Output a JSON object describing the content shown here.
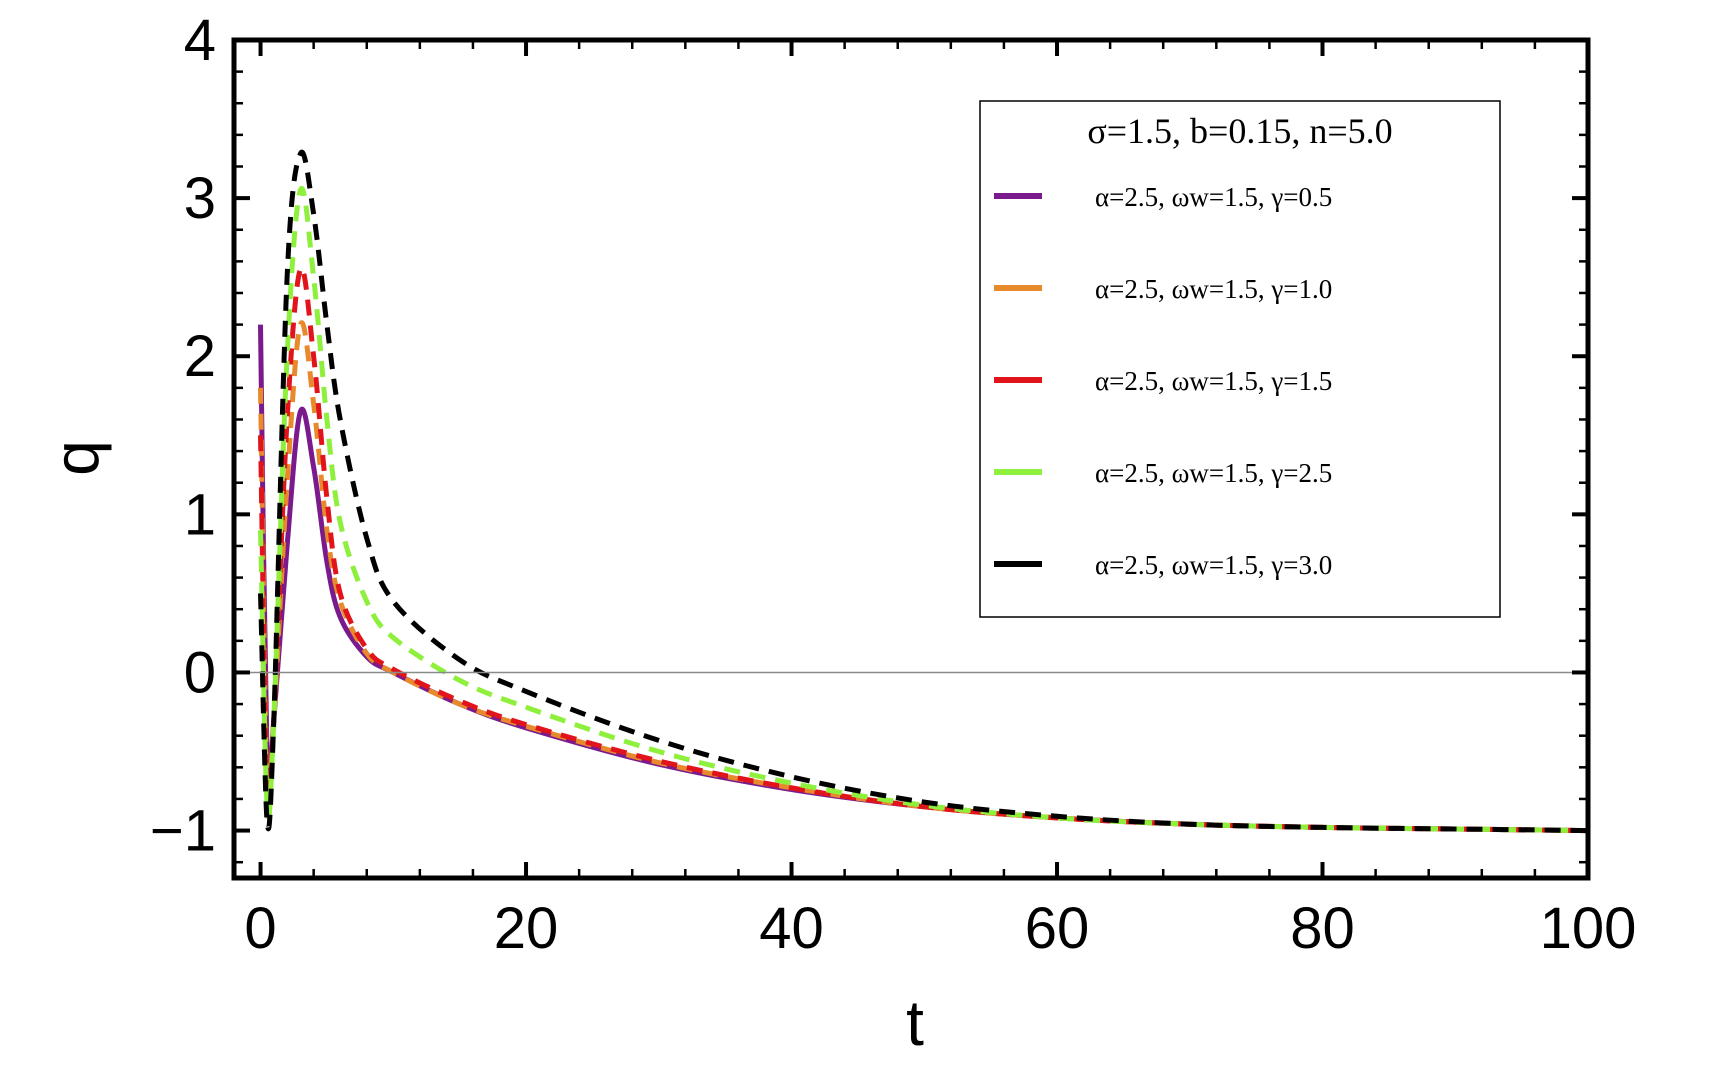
{
  "chart_data": {
    "type": "line",
    "xlabel": "t",
    "ylabel": "q",
    "xlim": [
      -2,
      100
    ],
    "ylim": [
      -1.3,
      4
    ],
    "xticks": [
      0,
      20,
      40,
      60,
      80,
      100
    ],
    "yticks": [
      -1,
      0,
      1,
      2,
      3,
      4
    ],
    "ytick_labels": [
      "−1",
      "0",
      "1",
      "2",
      "3",
      "4"
    ],
    "legend_title": "σ=1.5, b=0.15, n=5.0",
    "legend_position": "top-right",
    "grid": false,
    "reference_line_y": 0,
    "series": [
      {
        "name": "α=2.5, ωw=1.5, γ=0.5",
        "color": "#7a1a8c",
        "dash": "solid",
        "x": [
          0,
          0.5,
          1,
          2,
          3,
          4,
          5,
          6,
          8,
          10,
          15,
          20,
          30,
          40,
          50,
          60,
          70,
          80,
          90,
          100
        ],
        "y": [
          2.2,
          -0.6,
          -0.3,
          0.8,
          1.65,
          1.3,
          0.7,
          0.35,
          0.1,
          0.0,
          -0.2,
          -0.35,
          -0.58,
          -0.74,
          -0.85,
          -0.92,
          -0.96,
          -0.98,
          -0.99,
          -1.0
        ]
      },
      {
        "name": "α=2.5, ωw=1.5, γ=1.0",
        "color": "#e8892c",
        "dash": "dashed",
        "x": [
          0,
          0.5,
          1,
          2,
          3,
          4,
          5,
          6,
          8,
          10,
          15,
          20,
          30,
          40,
          50,
          60,
          70,
          80,
          90,
          100
        ],
        "y": [
          1.8,
          -0.75,
          -0.3,
          1.2,
          2.2,
          1.7,
          0.9,
          0.45,
          0.12,
          0.0,
          -0.2,
          -0.34,
          -0.57,
          -0.73,
          -0.85,
          -0.92,
          -0.96,
          -0.98,
          -0.99,
          -1.0
        ]
      },
      {
        "name": "α=2.5, ωw=1.5, γ=1.5",
        "color": "#e0141a",
        "dash": "dashed",
        "x": [
          0,
          0.5,
          1,
          2,
          3,
          4,
          5,
          6,
          8,
          10,
          15,
          20,
          30,
          40,
          50,
          60,
          70,
          80,
          90,
          100
        ],
        "y": [
          1.5,
          -0.8,
          -0.3,
          1.6,
          2.55,
          2.0,
          1.1,
          0.5,
          0.15,
          0.02,
          -0.18,
          -0.33,
          -0.56,
          -0.73,
          -0.85,
          -0.92,
          -0.96,
          -0.98,
          -0.99,
          -1.0
        ]
      },
      {
        "name": "α=2.5, ωw=1.5, γ=2.5",
        "color": "#8ef03c",
        "dash": "dashed",
        "x": [
          0,
          0.5,
          1,
          2,
          3,
          4,
          5,
          6,
          8,
          10,
          15,
          20,
          30,
          40,
          50,
          60,
          70,
          80,
          90,
          100
        ],
        "y": [
          0.9,
          -0.85,
          -0.3,
          2.0,
          3.05,
          2.5,
          1.6,
          0.95,
          0.45,
          0.22,
          -0.05,
          -0.22,
          -0.5,
          -0.7,
          -0.84,
          -0.92,
          -0.96,
          -0.98,
          -0.99,
          -1.0
        ]
      },
      {
        "name": "α=2.5, ωw=1.5, γ=3.0",
        "color": "#000000",
        "dash": "dashed",
        "x": [
          0,
          0.5,
          1,
          2,
          3,
          4,
          5,
          6,
          8,
          10,
          15,
          20,
          30,
          40,
          50,
          60,
          70,
          80,
          90,
          100
        ],
        "y": [
          0.5,
          -0.95,
          -0.3,
          2.5,
          3.28,
          2.9,
          2.2,
          1.6,
          0.85,
          0.45,
          0.08,
          -0.12,
          -0.43,
          -0.66,
          -0.82,
          -0.91,
          -0.96,
          -0.98,
          -0.99,
          -1.0
        ]
      }
    ]
  }
}
